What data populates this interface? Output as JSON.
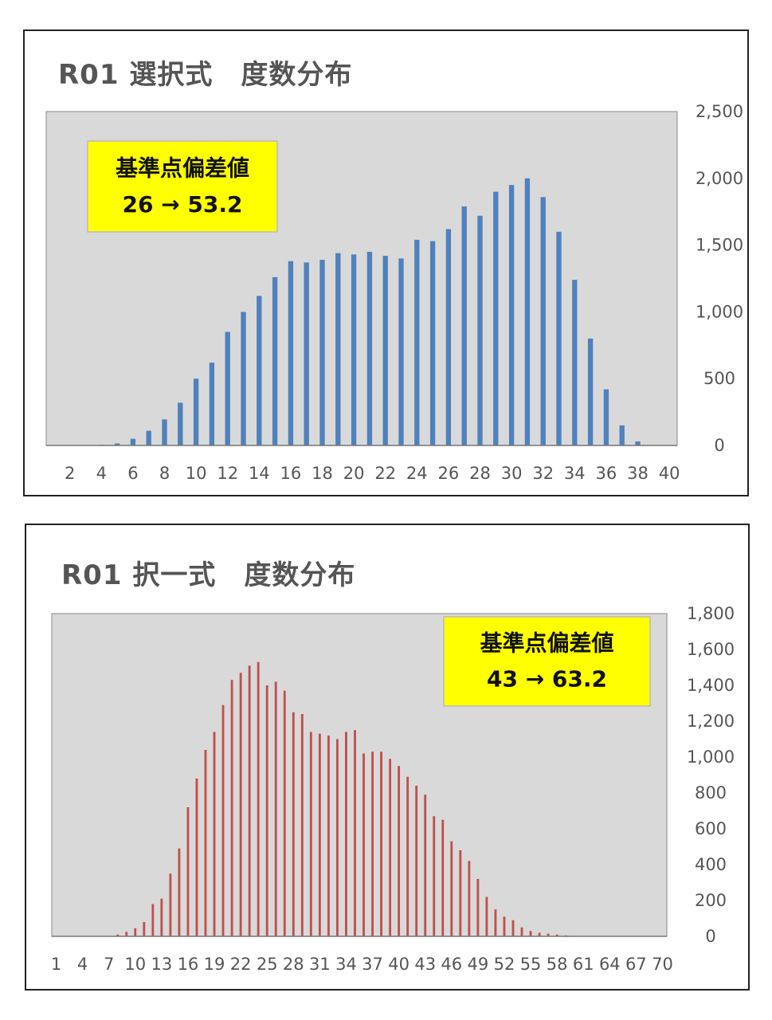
{
  "chart_data": [
    {
      "type": "bar",
      "title": "R01 選択式　度数分布",
      "annotation": {
        "line1": "基準点偏差値",
        "line2": "26 → 53.2"
      },
      "colors": {
        "bar": "#4F81BD",
        "plot_bg": "#D9D9D9",
        "annotation_bg": "#FFFF00"
      },
      "x": [
        1,
        2,
        3,
        4,
        5,
        6,
        7,
        8,
        9,
        10,
        11,
        12,
        13,
        14,
        15,
        16,
        17,
        18,
        19,
        20,
        21,
        22,
        23,
        24,
        25,
        26,
        27,
        28,
        29,
        30,
        31,
        32,
        33,
        34,
        35,
        36,
        37,
        38,
        39,
        40
      ],
      "values": [
        0,
        0,
        2,
        5,
        15,
        50,
        110,
        195,
        320,
        500,
        620,
        850,
        1000,
        1120,
        1260,
        1380,
        1370,
        1390,
        1440,
        1430,
        1450,
        1420,
        1400,
        1540,
        1530,
        1620,
        1790,
        1720,
        1900,
        1950,
        2000,
        1860,
        1600,
        1240,
        800,
        420,
        150,
        30,
        0,
        0
      ],
      "x_tick_labels": [
        "2",
        "4",
        "6",
        "8",
        "10",
        "12",
        "14",
        "16",
        "18",
        "20",
        "22",
        "24",
        "26",
        "28",
        "30",
        "32",
        "34",
        "36",
        "38",
        "40"
      ],
      "y_tick_labels": [
        "0",
        "500",
        "1,000",
        "1,500",
        "2,000",
        "2,500"
      ],
      "ylim": [
        0,
        2500
      ],
      "y_axis_side": "right",
      "grid": false,
      "legend": "none"
    },
    {
      "type": "bar",
      "title": "R01 択一式　度数分布",
      "annotation": {
        "line1": "基準点偏差値",
        "line2": "43 → 63.2"
      },
      "colors": {
        "bar": "#C0504D",
        "plot_bg": "#D9D9D9",
        "annotation_bg": "#FFFF00"
      },
      "x": [
        1,
        2,
        3,
        4,
        5,
        6,
        7,
        8,
        9,
        10,
        11,
        12,
        13,
        14,
        15,
        16,
        17,
        18,
        19,
        20,
        21,
        22,
        23,
        24,
        25,
        26,
        27,
        28,
        29,
        30,
        31,
        32,
        33,
        34,
        35,
        36,
        37,
        38,
        39,
        40,
        41,
        42,
        43,
        44,
        45,
        46,
        47,
        48,
        49,
        50,
        51,
        52,
        53,
        54,
        55,
        56,
        57,
        58,
        59,
        60,
        61,
        62,
        63,
        64,
        65,
        66,
        67,
        68,
        69,
        70
      ],
      "values": [
        0,
        0,
        0,
        0,
        0,
        0,
        0,
        10,
        25,
        45,
        80,
        180,
        210,
        350,
        490,
        720,
        880,
        1040,
        1140,
        1290,
        1430,
        1470,
        1510,
        1530,
        1400,
        1420,
        1370,
        1250,
        1240,
        1140,
        1130,
        1120,
        1100,
        1140,
        1150,
        1020,
        1030,
        1030,
        990,
        950,
        890,
        840,
        790,
        670,
        650,
        530,
        480,
        420,
        320,
        220,
        150,
        110,
        90,
        50,
        30,
        20,
        15,
        10,
        5,
        3,
        0,
        0,
        0,
        0,
        0,
        0,
        0,
        0,
        0,
        0
      ],
      "x_tick_labels": [
        "1",
        "4",
        "7",
        "10",
        "13",
        "16",
        "19",
        "22",
        "25",
        "28",
        "31",
        "34",
        "37",
        "40",
        "43",
        "46",
        "49",
        "52",
        "55",
        "58",
        "61",
        "64",
        "67",
        "70"
      ],
      "y_tick_labels": [
        "0",
        "200",
        "400",
        "600",
        "800",
        "1,000",
        "1,200",
        "1,400",
        "1,600",
        "1,800"
      ],
      "ylim": [
        0,
        1800
      ],
      "y_axis_side": "right",
      "grid": false,
      "legend": "none"
    }
  ]
}
